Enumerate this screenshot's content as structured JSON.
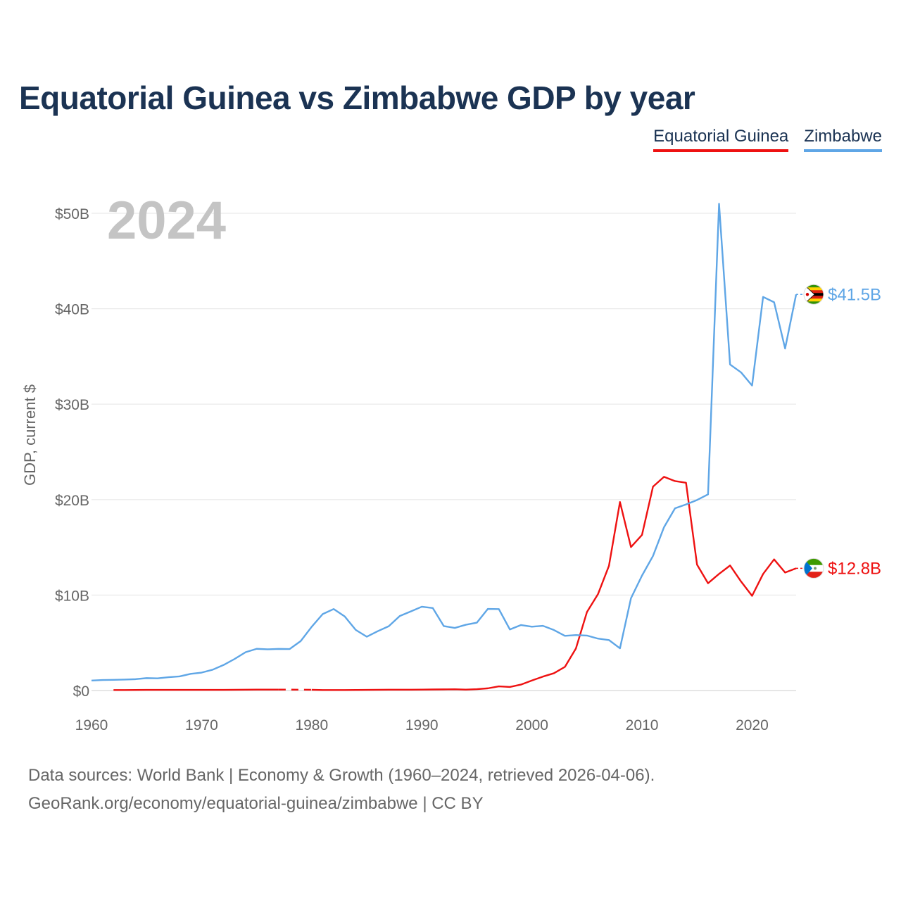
{
  "title": "Equatorial Guinea vs Zimbabwe GDP by year",
  "legend": [
    {
      "label": "Equatorial Guinea",
      "color": "#ee1111"
    },
    {
      "label": "Zimbabwe",
      "color": "#5fa6e6"
    }
  ],
  "source_line1": "Data sources: World Bank | Economy & Growth (1960–2024, retrieved 2026-04-06).",
  "source_line2": "GeoRank.org/economy/equatorial-guinea/zimbabwe | CC BY",
  "chart_data": {
    "type": "line",
    "title": "Equatorial Guinea vs Zimbabwe GDP by year",
    "xlabel": "",
    "ylabel": "GDP, current $",
    "year_overlay": "2024",
    "xlim": [
      1960,
      2024
    ],
    "ylim": [
      0,
      52
    ],
    "x_ticks": [
      1960,
      1970,
      1980,
      1990,
      2000,
      2010,
      2020
    ],
    "y_ticks": [
      {
        "value": 0,
        "label": "$0"
      },
      {
        "value": 10,
        "label": "$10B"
      },
      {
        "value": 20,
        "label": "$20B"
      },
      {
        "value": 30,
        "label": "$30B"
      },
      {
        "value": 40,
        "label": "$40B"
      },
      {
        "value": 50,
        "label": "$50B"
      }
    ],
    "grid": true,
    "series": [
      {
        "name": "Equatorial Guinea",
        "color": "#ee1111",
        "end_label": "$12.8B",
        "gap": [
          1977,
          1980
        ],
        "x": [
          1962,
          1963,
          1964,
          1965,
          1966,
          1967,
          1968,
          1969,
          1970,
          1971,
          1972,
          1973,
          1974,
          1975,
          1976,
          1977,
          1980,
          1981,
          1982,
          1983,
          1984,
          1985,
          1986,
          1987,
          1988,
          1989,
          1990,
          1991,
          1992,
          1993,
          1994,
          1995,
          1996,
          1997,
          1998,
          1999,
          2000,
          2001,
          2002,
          2003,
          2004,
          2005,
          2006,
          2007,
          2008,
          2009,
          2010,
          2011,
          2012,
          2013,
          2014,
          2015,
          2016,
          2017,
          2018,
          2019,
          2020,
          2021,
          2022,
          2023,
          2024
        ],
        "values": [
          0.05,
          0.05,
          0.06,
          0.07,
          0.07,
          0.07,
          0.07,
          0.07,
          0.07,
          0.07,
          0.07,
          0.08,
          0.09,
          0.1,
          0.1,
          0.1,
          0.08,
          0.05,
          0.05,
          0.05,
          0.06,
          0.07,
          0.08,
          0.09,
          0.09,
          0.09,
          0.1,
          0.11,
          0.12,
          0.13,
          0.1,
          0.14,
          0.23,
          0.44,
          0.37,
          0.62,
          1.05,
          1.46,
          1.81,
          2.48,
          4.41,
          8.22,
          10.09,
          13.07,
          19.75,
          15.03,
          16.3,
          21.36,
          22.39,
          21.94,
          21.77,
          13.19,
          11.24,
          12.22,
          13.1,
          11.42,
          9.92,
          12.21,
          13.74,
          12.36,
          12.8
        ]
      },
      {
        "name": "Zimbabwe",
        "color": "#5fa6e6",
        "end_label": "$41.5B",
        "x": [
          1960,
          1961,
          1962,
          1963,
          1964,
          1965,
          1966,
          1967,
          1968,
          1969,
          1970,
          1971,
          1972,
          1973,
          1974,
          1975,
          1976,
          1977,
          1978,
          1979,
          1980,
          1981,
          1982,
          1983,
          1984,
          1985,
          1986,
          1987,
          1988,
          1989,
          1990,
          1991,
          1992,
          1993,
          1994,
          1995,
          1996,
          1997,
          1998,
          1999,
          2000,
          2001,
          2002,
          2003,
          2004,
          2005,
          2006,
          2007,
          2008,
          2009,
          2010,
          2011,
          2012,
          2013,
          2014,
          2015,
          2016,
          2017,
          2018,
          2019,
          2020,
          2021,
          2022,
          2023,
          2024
        ],
        "values": [
          1.05,
          1.1,
          1.12,
          1.15,
          1.19,
          1.3,
          1.28,
          1.4,
          1.48,
          1.75,
          1.88,
          2.18,
          2.68,
          3.31,
          4.02,
          4.37,
          4.32,
          4.36,
          4.35,
          5.18,
          6.68,
          8.01,
          8.54,
          7.76,
          6.35,
          5.64,
          6.22,
          6.74,
          7.81,
          8.29,
          8.78,
          8.64,
          6.75,
          6.56,
          6.89,
          7.11,
          8.55,
          8.53,
          6.4,
          6.86,
          6.69,
          6.78,
          6.34,
          5.73,
          5.81,
          5.76,
          5.44,
          5.29,
          4.42,
          9.67,
          12.04,
          14.1,
          17.11,
          19.09,
          19.5,
          19.96,
          20.55,
          51.0,
          34.16,
          33.33,
          31.95,
          41.24,
          40.68,
          35.83,
          41.5
        ]
      }
    ]
  }
}
